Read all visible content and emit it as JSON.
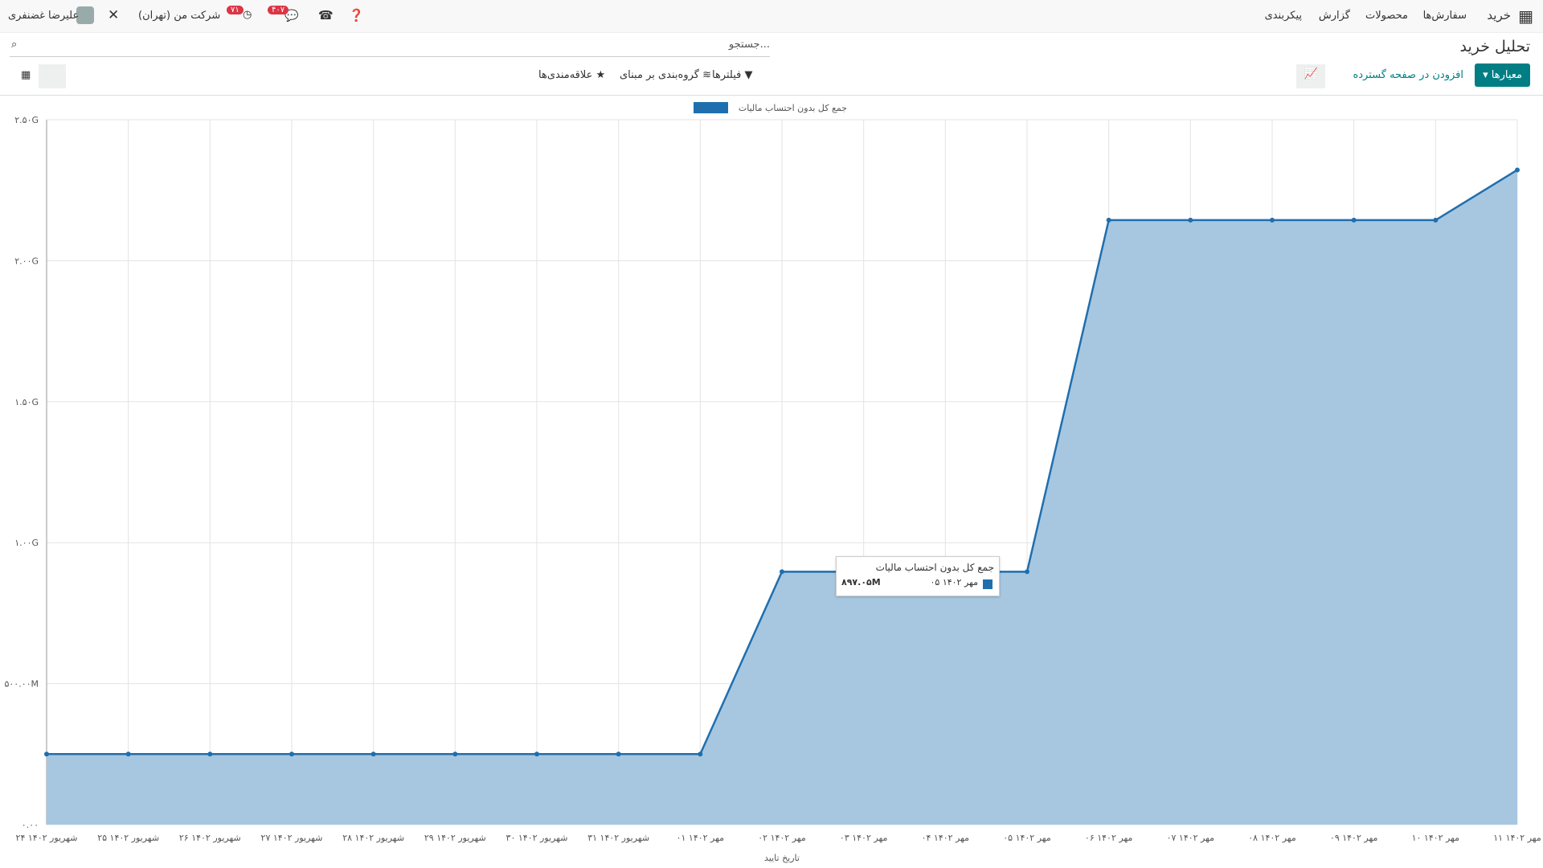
{
  "navbar": {
    "app": "خرید",
    "menu": [
      "سفارش‌ها",
      "محصولات",
      "گزارش",
      "پیکربندی"
    ],
    "user": "علیرضا غضنفری",
    "company": "شرکت من (تهران)",
    "messages_badge": "۴۰۷",
    "activities_badge": "۷۱"
  },
  "control_panel": {
    "title": "تحلیل خرید",
    "search_placeholder": "جستجو...",
    "measures": "معیارها",
    "insert_spreadsheet": "افزودن در صفحه گسترده",
    "filters": "فیلترها",
    "group_by": "گروه‌بندی بر مبنای",
    "favorites": "علاقه‌مندی‌ها"
  },
  "chart_data": {
    "type": "line",
    "area": true,
    "x_label": "تاریخ تایید",
    "categories": [
      "۲۴ شهریور ۱۴۰۲",
      "۲۵ شهریور ۱۴۰۲",
      "۲۶ شهریور ۱۴۰۲",
      "۲۷ شهریور ۱۴۰۲",
      "۲۸ شهریور ۱۴۰۲",
      "۲۹ شهریور ۱۴۰۲",
      "۳۰ شهریور ۱۴۰۲",
      "۳۱ شهریور ۱۴۰۲",
      "۰۱ مهر ۱۴۰۲",
      "۰۲ مهر ۱۴۰۲",
      "۰۳ مهر ۱۴۰۲",
      "۰۴ مهر ۱۴۰۲",
      "۰۵ مهر ۱۴۰۲",
      "۰۶ مهر ۱۴۰۲",
      "۰۷ مهر ۱۴۰۲",
      "۰۸ مهر ۱۴۰۲",
      "۰۹ مهر ۱۴۰۲",
      "۱۰ مهر ۱۴۰۲",
      "۱۱ مهر ۱۴۰۲"
    ],
    "series": [
      {
        "name": "جمع کل بدون احتساب مالیات",
        "color": "#1f6fae",
        "fill": "#a7c7e0",
        "values": [
          250000000,
          250000000,
          250000000,
          250000000,
          250000000,
          250000000,
          250000000,
          250000000,
          250000000,
          897050000,
          897050000,
          897050000,
          897050000,
          2144000000,
          2144000000,
          2144000000,
          2144000000,
          2144000000,
          2322000000
        ]
      }
    ],
    "ylim": [
      0,
      2500000000
    ],
    "yticks": [
      {
        "value": 0,
        "label": "۰.۰۰"
      },
      {
        "value": 500000000,
        "label": "۵۰۰.۰۰M"
      },
      {
        "value": 1000000000,
        "label": "۱.۰۰G"
      },
      {
        "value": 1500000000,
        "label": "۱.۵۰G"
      },
      {
        "value": 2000000000,
        "label": "۲.۰۰G"
      },
      {
        "value": 2500000000,
        "label": "۲.۵۰G"
      }
    ],
    "grid": true,
    "tooltip": {
      "title": "جمع کل بدون احتساب مالیات",
      "category": "۰۵ مهر ۱۴۰۲",
      "value_label": "۸۹۷.۰۵M"
    }
  }
}
